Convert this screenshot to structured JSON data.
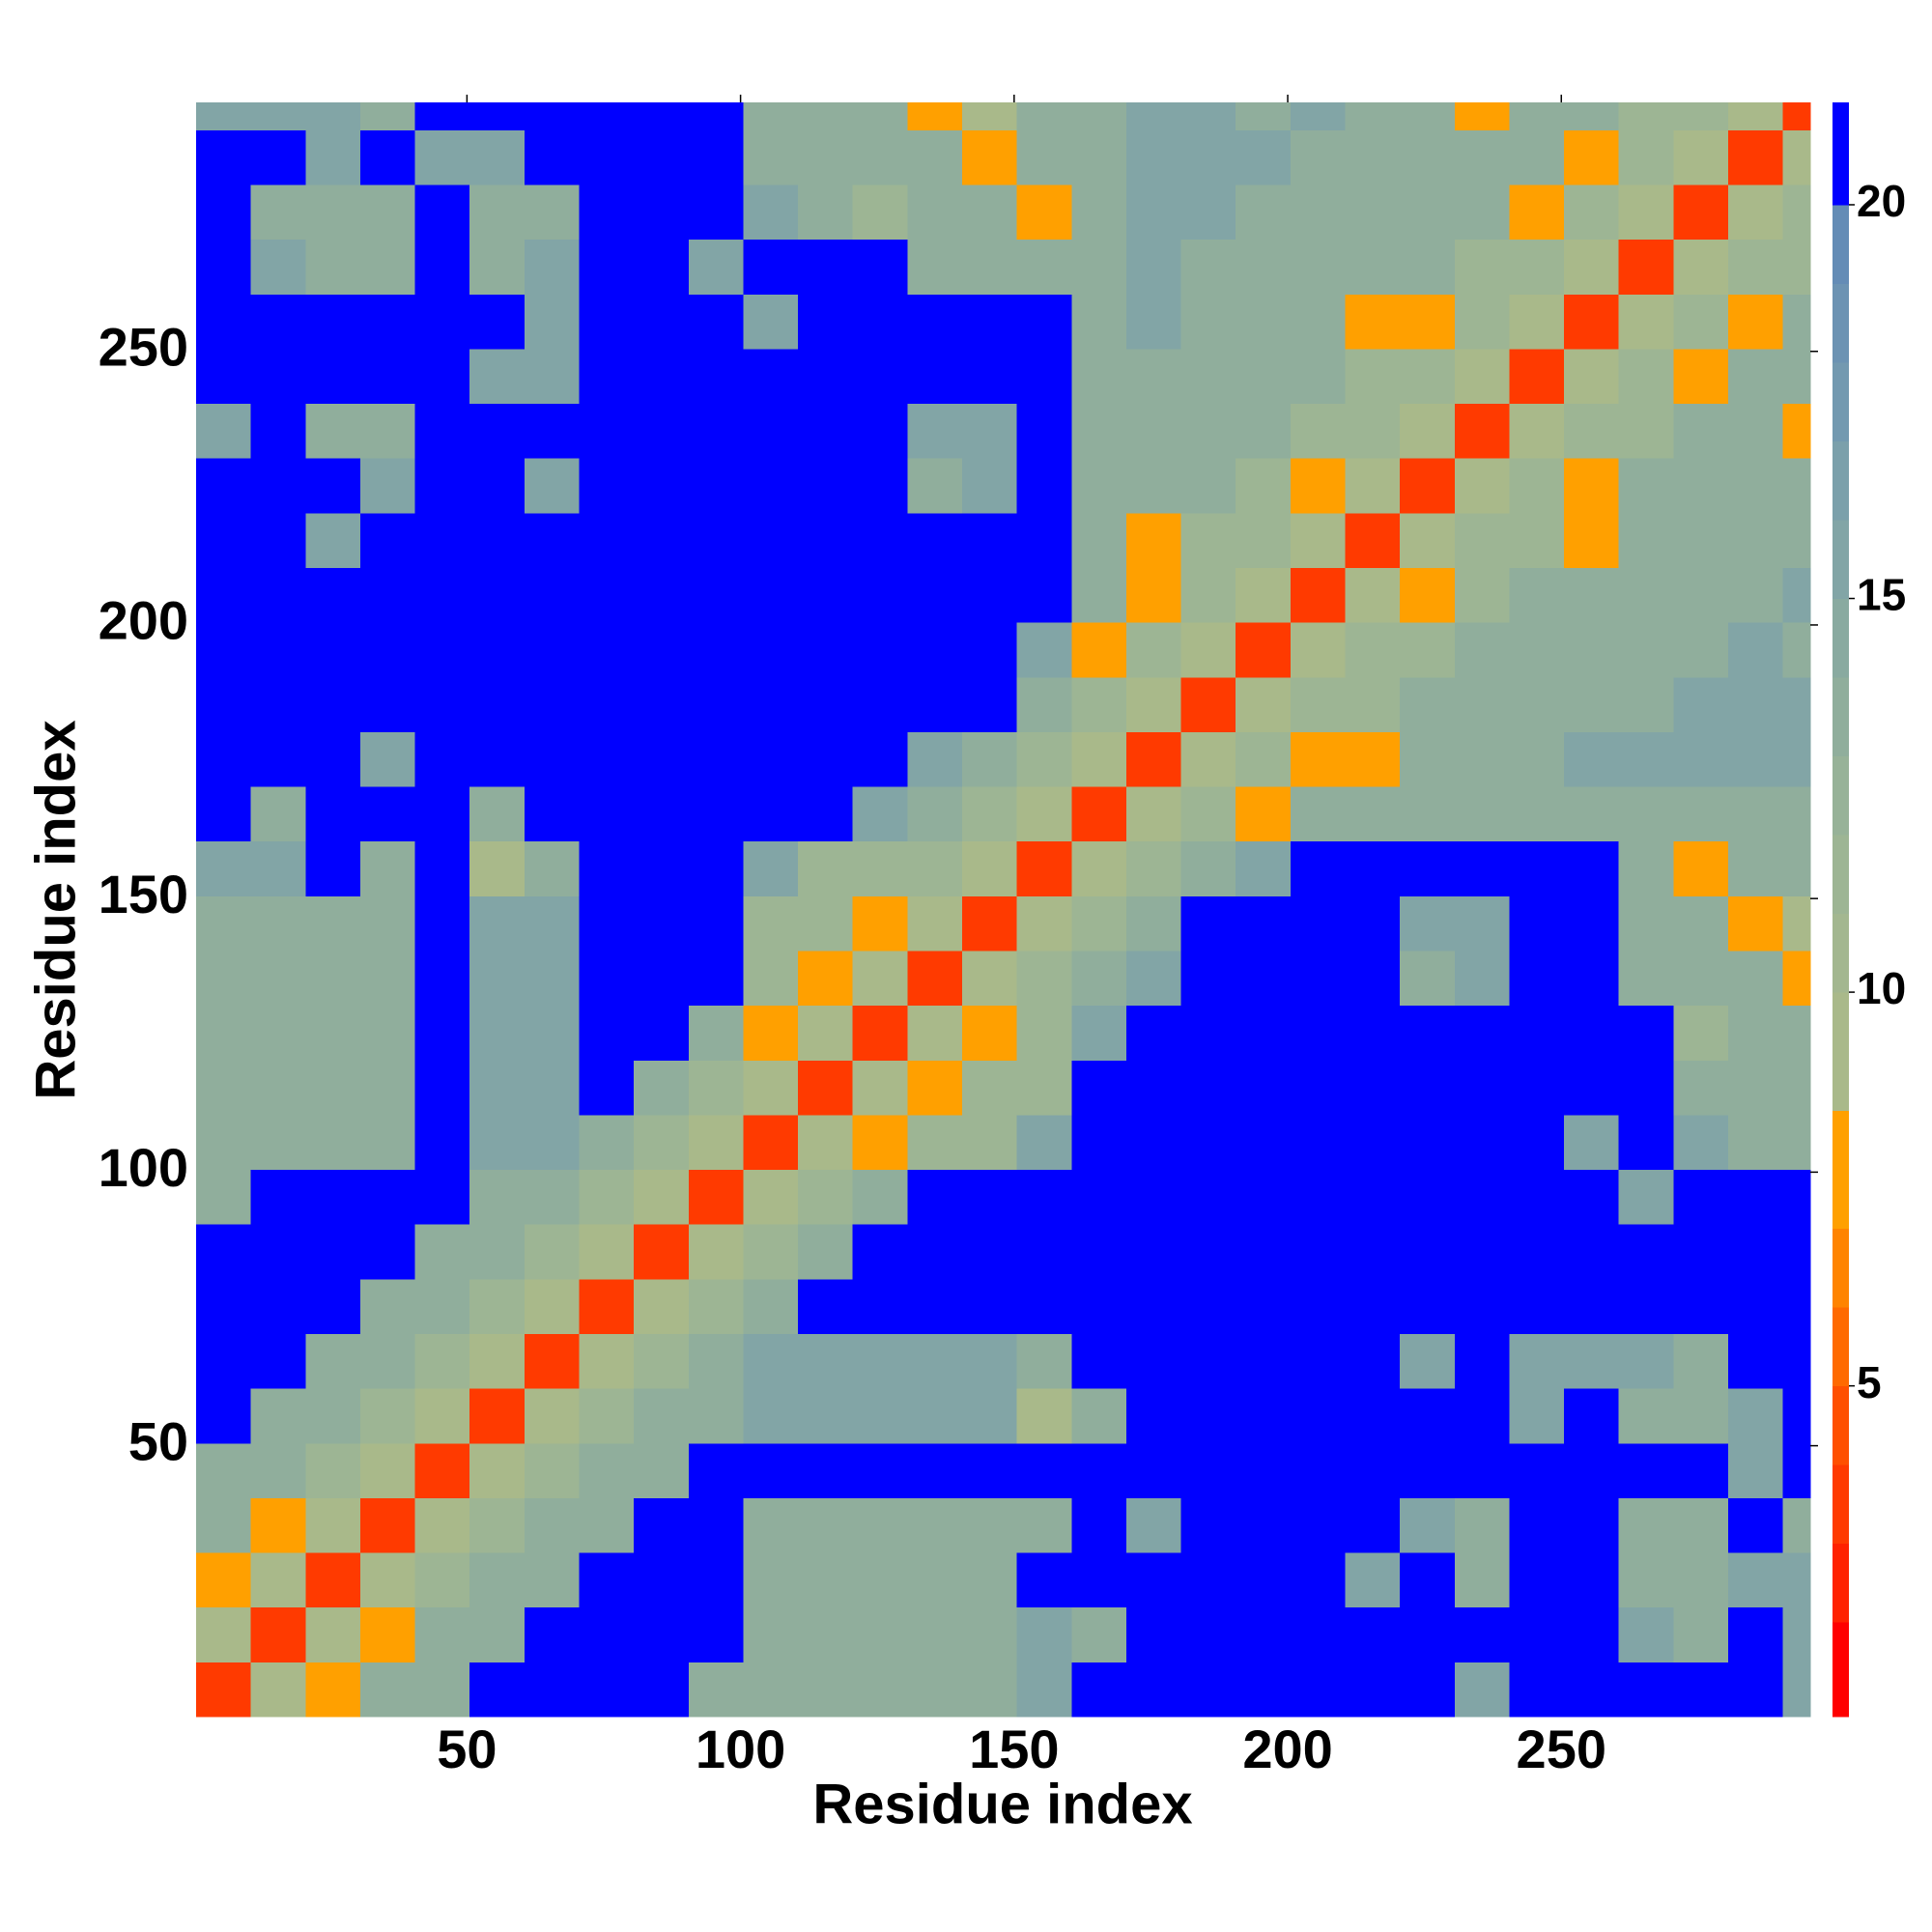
{
  "chart_data": {
    "type": "heatmap",
    "x_label": "Residue index",
    "y_label": "Residue index",
    "xlim": [
      0.5,
      295.5
    ],
    "ylim": [
      0.5,
      295.5
    ],
    "xticks": [
      50,
      100,
      150,
      200,
      250
    ],
    "yticks": [
      50,
      100,
      150,
      200,
      250
    ],
    "bins": [
      0.5,
      10.5,
      20.5,
      30.5,
      40.5,
      50.5,
      60.5,
      70.5,
      80.5,
      90.5,
      100.5,
      110.5,
      120.5,
      130.5,
      140.5,
      150.5,
      160.5,
      170.5,
      180.5,
      190.5,
      200.5,
      210.5,
      220.5,
      230.5,
      240.5,
      250.5,
      260.5,
      270.5,
      280.5,
      290.5,
      295.5
    ],
    "zlim": [
      0.8,
      21.3
    ],
    "zticks": [
      5,
      10,
      15,
      20
    ],
    "levels": [
      0.8,
      2,
      3,
      4,
      5,
      6,
      7,
      8.5,
      10,
      11,
      12,
      13,
      14,
      15,
      16,
      17,
      18,
      19,
      20,
      21.3
    ],
    "colors": [
      "#ff0000",
      "#ff2200",
      "#ff3a00",
      "#ff5000",
      "#ff6a00",
      "#ff8400",
      "#ffa000",
      "#a9b98a",
      "#a3b790",
      "#9db594",
      "#97b298",
      "#90ae9c",
      "#89aaa0",
      "#82a5a6",
      "#7ba0ab",
      "#7399b0",
      "#6c93b3",
      "#648cb6",
      "#0000ff"
    ],
    "z": [
      [
        4,
        10,
        8,
        14,
        14,
        21,
        21,
        21,
        21,
        14,
        14,
        14,
        14,
        14,
        14,
        16,
        21,
        21,
        21,
        21,
        21,
        21,
        21,
        16,
        21,
        21,
        21,
        21,
        21,
        16
      ],
      [
        10,
        4,
        10,
        8,
        14,
        14,
        21,
        21,
        21,
        21,
        14,
        14,
        14,
        14,
        14,
        16,
        14,
        21,
        21,
        21,
        21,
        21,
        21,
        21,
        21,
        21,
        16,
        14,
        21,
        16
      ],
      [
        8,
        10,
        4,
        10,
        12,
        14,
        14,
        21,
        21,
        21,
        14,
        14,
        14,
        14,
        14,
        21,
        21,
        21,
        21,
        21,
        21,
        16,
        21,
        14,
        21,
        21,
        14,
        14,
        16,
        16
      ],
      [
        14,
        8,
        10,
        4,
        10,
        12,
        14,
        14,
        21,
        21,
        14,
        14,
        14,
        14,
        14,
        14,
        21,
        16,
        21,
        21,
        21,
        21,
        16,
        14,
        21,
        21,
        14,
        14,
        21,
        14
      ],
      [
        14,
        14,
        12,
        10,
        4,
        10,
        12,
        14,
        14,
        21,
        21,
        21,
        21,
        21,
        21,
        21,
        21,
        21,
        21,
        21,
        21,
        21,
        21,
        21,
        21,
        21,
        21,
        21,
        16,
        21
      ],
      [
        21,
        14,
        14,
        12,
        10,
        4,
        10,
        12,
        14,
        14,
        16,
        16,
        16,
        16,
        16,
        10,
        14,
        21,
        21,
        21,
        21,
        21,
        21,
        21,
        16,
        21,
        14,
        14,
        16,
        21
      ],
      [
        21,
        21,
        14,
        14,
        12,
        10,
        4,
        10,
        12,
        14,
        16,
        16,
        16,
        16,
        16,
        14,
        21,
        21,
        21,
        21,
        21,
        21,
        16,
        21,
        16,
        16,
        16,
        14,
        21,
        21
      ],
      [
        21,
        21,
        21,
        14,
        14,
        12,
        10,
        4,
        10,
        12,
        14,
        21,
        21,
        21,
        21,
        21,
        21,
        21,
        21,
        21,
        21,
        21,
        21,
        21,
        21,
        21,
        21,
        21,
        21,
        21
      ],
      [
        21,
        21,
        21,
        21,
        14,
        14,
        12,
        10,
        4,
        10,
        12,
        14,
        21,
        21,
        21,
        21,
        21,
        21,
        21,
        21,
        21,
        21,
        21,
        21,
        21,
        21,
        21,
        21,
        21,
        21
      ],
      [
        14,
        21,
        21,
        21,
        21,
        14,
        14,
        12,
        10,
        4,
        10,
        12,
        14,
        21,
        21,
        21,
        21,
        21,
        21,
        21,
        21,
        21,
        21,
        21,
        21,
        21,
        16,
        21,
        21,
        21
      ],
      [
        14,
        14,
        14,
        14,
        21,
        16,
        16,
        14,
        12,
        10,
        4,
        10,
        8,
        12,
        12,
        16,
        21,
        21,
        21,
        21,
        21,
        21,
        21,
        21,
        21,
        16,
        21,
        16,
        14,
        14
      ],
      [
        14,
        14,
        14,
        14,
        21,
        16,
        16,
        21,
        14,
        12,
        10,
        4,
        10,
        8,
        12,
        12,
        21,
        21,
        21,
        21,
        21,
        21,
        21,
        21,
        21,
        21,
        21,
        14,
        14,
        14
      ],
      [
        14,
        14,
        14,
        14,
        21,
        16,
        16,
        21,
        21,
        14,
        8,
        10,
        4,
        10,
        8,
        12,
        16,
        21,
        21,
        21,
        21,
        21,
        21,
        21,
        21,
        21,
        21,
        12,
        14,
        14
      ],
      [
        14,
        14,
        14,
        14,
        21,
        16,
        16,
        21,
        21,
        21,
        12,
        8,
        10,
        4,
        10,
        12,
        14,
        16,
        21,
        21,
        21,
        21,
        14,
        16,
        21,
        21,
        14,
        14,
        14,
        8
      ],
      [
        14,
        14,
        14,
        14,
        21,
        16,
        16,
        21,
        21,
        21,
        12,
        12,
        8,
        10,
        4,
        10,
        12,
        14,
        21,
        21,
        21,
        21,
        16,
        16,
        21,
        21,
        14,
        14,
        8,
        10
      ],
      [
        16,
        16,
        21,
        14,
        21,
        10,
        14,
        21,
        21,
        21,
        16,
        12,
        12,
        12,
        10,
        4,
        10,
        12,
        14,
        16,
        21,
        21,
        21,
        21,
        21,
        21,
        14,
        8,
        14,
        14
      ],
      [
        21,
        14,
        21,
        21,
        21,
        14,
        21,
        21,
        21,
        21,
        21,
        21,
        16,
        14,
        12,
        10,
        4,
        10,
        12,
        8,
        14,
        14,
        14,
        14,
        14,
        14,
        14,
        14,
        14,
        14
      ],
      [
        21,
        21,
        21,
        16,
        21,
        21,
        21,
        21,
        21,
        21,
        21,
        21,
        21,
        16,
        14,
        12,
        10,
        4,
        10,
        12,
        8,
        8,
        14,
        14,
        14,
        16,
        16,
        16,
        16,
        16
      ],
      [
        21,
        21,
        21,
        21,
        21,
        21,
        21,
        21,
        21,
        21,
        21,
        21,
        21,
        21,
        21,
        14,
        12,
        10,
        4,
        10,
        12,
        12,
        14,
        14,
        14,
        14,
        14,
        16,
        16,
        16
      ],
      [
        21,
        21,
        21,
        21,
        21,
        21,
        21,
        21,
        21,
        21,
        21,
        21,
        21,
        21,
        21,
        16,
        8,
        12,
        10,
        4,
        10,
        12,
        12,
        14,
        14,
        14,
        14,
        14,
        16,
        14
      ],
      [
        21,
        21,
        21,
        21,
        21,
        21,
        21,
        21,
        21,
        21,
        21,
        21,
        21,
        21,
        21,
        21,
        14,
        8,
        12,
        10,
        4,
        10,
        8,
        12,
        14,
        14,
        14,
        14,
        14,
        16
      ],
      [
        21,
        21,
        16,
        21,
        21,
        21,
        21,
        21,
        21,
        21,
        21,
        21,
        21,
        21,
        21,
        21,
        14,
        8,
        12,
        12,
        10,
        4,
        10,
        12,
        12,
        8,
        14,
        14,
        14,
        14
      ],
      [
        21,
        21,
        21,
        16,
        21,
        21,
        16,
        21,
        21,
        21,
        21,
        21,
        21,
        14,
        16,
        21,
        14,
        14,
        14,
        12,
        8,
        10,
        4,
        10,
        12,
        8,
        14,
        14,
        14,
        14
      ],
      [
        16,
        21,
        14,
        14,
        21,
        21,
        21,
        21,
        21,
        21,
        21,
        21,
        21,
        16,
        16,
        21,
        14,
        14,
        14,
        14,
        12,
        12,
        10,
        4,
        10,
        12,
        12,
        14,
        14,
        8
      ],
      [
        21,
        21,
        21,
        21,
        21,
        16,
        16,
        21,
        21,
        21,
        21,
        21,
        21,
        21,
        21,
        21,
        14,
        14,
        14,
        14,
        14,
        12,
        12,
        10,
        4,
        10,
        12,
        8,
        14,
        14
      ],
      [
        21,
        21,
        21,
        21,
        21,
        21,
        16,
        21,
        21,
        21,
        16,
        21,
        21,
        21,
        21,
        21,
        14,
        16,
        14,
        14,
        14,
        8,
        8,
        12,
        10,
        4,
        10,
        12,
        8,
        14
      ],
      [
        21,
        16,
        14,
        14,
        21,
        14,
        16,
        21,
        21,
        16,
        21,
        21,
        21,
        14,
        14,
        14,
        14,
        16,
        14,
        14,
        14,
        14,
        14,
        12,
        12,
        10,
        4,
        10,
        12,
        12
      ],
      [
        21,
        14,
        14,
        14,
        21,
        14,
        14,
        21,
        21,
        21,
        16,
        14,
        12,
        14,
        14,
        8,
        14,
        16,
        16,
        14,
        14,
        14,
        14,
        14,
        8,
        12,
        10,
        4,
        10,
        12
      ],
      [
        21,
        21,
        16,
        21,
        16,
        16,
        21,
        21,
        21,
        21,
        14,
        14,
        14,
        14,
        8,
        14,
        14,
        16,
        16,
        16,
        14,
        14,
        14,
        14,
        14,
        8,
        12,
        10,
        4,
        10
      ],
      [
        16,
        16,
        16,
        14,
        21,
        21,
        21,
        21,
        21,
        21,
        14,
        14,
        14,
        8,
        10,
        14,
        14,
        16,
        16,
        14,
        16,
        14,
        14,
        8,
        14,
        14,
        12,
        12,
        10,
        4
      ]
    ]
  }
}
